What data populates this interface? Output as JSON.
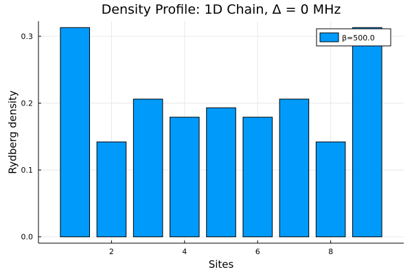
{
  "chart_data": {
    "type": "bar",
    "title": "Density Profile: 1D Chain, Δ = 0 MHz",
    "xlabel": "Sites",
    "ylabel": "Rydberg density",
    "categories": [
      1,
      2,
      3,
      4,
      5,
      6,
      7,
      8,
      9
    ],
    "series": [
      {
        "name": "β=500.0",
        "color": "#009AFA",
        "values": [
          0.313,
          0.142,
          0.206,
          0.179,
          0.193,
          0.179,
          0.206,
          0.142,
          0.313
        ]
      }
    ],
    "xlim": [
      0.0,
      10.0
    ],
    "ylim": [
      -0.0095,
      0.3225
    ],
    "xticks": [
      2,
      4,
      6,
      8
    ],
    "xtick_labels": [
      "2",
      "4",
      "6",
      "8"
    ],
    "yticks": [
      0.0,
      0.1,
      0.2,
      0.3
    ],
    "ytick_labels": [
      "0.0",
      "0.1",
      "0.2",
      "0.3"
    ],
    "grid": true,
    "legend_position": "top-right"
  }
}
